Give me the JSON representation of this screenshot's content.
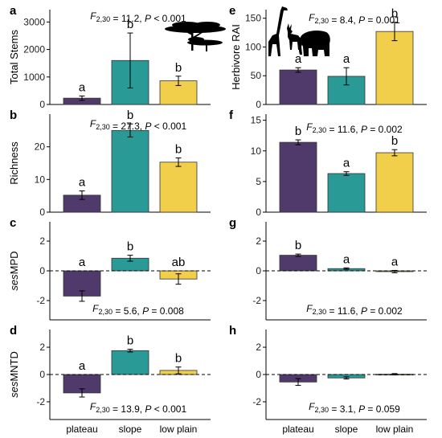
{
  "colors": {
    "plateau": "#4f3a6b",
    "slope": "#2a9a96",
    "low_plain": "#f2cf4a",
    "axis": "#000000"
  },
  "x_categories": [
    "plateau",
    "slope",
    "low plain"
  ],
  "icons": [
    "acacia-tree-icon",
    "giraffe-icon",
    "antelope-icon",
    "elephant-icon"
  ],
  "chart_data": [
    {
      "panel": "a",
      "type": "bar",
      "ylabel": "Total Stems",
      "ylabel_italic_prefix": "",
      "categories": [
        "plateau",
        "slope",
        "low plain"
      ],
      "values": [
        230,
        1600,
        860
      ],
      "err": [
        80,
        1000,
        170
      ],
      "letters": [
        "a",
        "b",
        "b"
      ],
      "stat_F": "2,30",
      "stat_value": "= 11.2,",
      "stat_p": "< 0.001",
      "ylim": [
        0,
        3450
      ],
      "ticks": [
        0,
        1000,
        2000,
        3000
      ],
      "dashed_zero": false
    },
    {
      "panel": "b",
      "type": "bar",
      "ylabel": "Richness",
      "ylabel_italic_prefix": "",
      "categories": [
        "plateau",
        "slope",
        "low plain"
      ],
      "values": [
        5.2,
        25,
        15.3
      ],
      "err": [
        1.3,
        2.0,
        1.3
      ],
      "letters": [
        "a",
        "b",
        "b"
      ],
      "stat_F": "2,30",
      "stat_value": "= 27.3,",
      "stat_p": "< 0.001",
      "ylim": [
        0,
        30
      ],
      "ticks": [
        0,
        10,
        20
      ],
      "dashed_zero": false
    },
    {
      "panel": "c",
      "type": "bar",
      "ylabel": "MPD",
      "ylabel_italic_prefix": "ses",
      "categories": [
        "plateau",
        "slope",
        "low plain"
      ],
      "values": [
        -1.7,
        0.85,
        -0.55
      ],
      "err": [
        0.35,
        0.2,
        0.35
      ],
      "letters": [
        "a",
        "b",
        "ab"
      ],
      "stat_F": "2,30",
      "stat_value": "= 5.6,",
      "stat_p": "= 0.008",
      "ylim": [
        -3.3,
        3.3
      ],
      "ticks": [
        -2,
        0,
        2
      ],
      "dashed_zero": true
    },
    {
      "panel": "d",
      "type": "bar",
      "ylabel": "MNTD",
      "ylabel_italic_prefix": "ses",
      "categories": [
        "plateau",
        "slope",
        "low plain"
      ],
      "values": [
        -1.35,
        1.75,
        0.3
      ],
      "err": [
        0.3,
        0.1,
        0.25
      ],
      "letters": [
        "a",
        "b",
        "b"
      ],
      "stat_F": "2,30",
      "stat_value": "= 13.9,",
      "stat_p": "< 0.001",
      "ylim": [
        -3.3,
        3.3
      ],
      "ticks": [
        -2,
        0,
        2
      ],
      "dashed_zero": true
    },
    {
      "panel": "e",
      "type": "bar",
      "ylabel": "Herbivore RAI",
      "ylabel_italic_prefix": "",
      "categories": [
        "plateau",
        "slope",
        "low plain"
      ],
      "values": [
        60,
        49,
        127
      ],
      "err": [
        4,
        15,
        16
      ],
      "letters": [
        "a",
        "a",
        "b"
      ],
      "stat_F": "2,30",
      "stat_value": "= 8.4,",
      "stat_p": "= 0.001",
      "ylim": [
        0,
        165
      ],
      "ticks": [
        0,
        50,
        100,
        150
      ],
      "dashed_zero": false
    },
    {
      "panel": "f",
      "type": "bar",
      "ylabel": "",
      "ylabel_italic_prefix": "",
      "categories": [
        "plateau",
        "slope",
        "low plain"
      ],
      "values": [
        11.4,
        6.3,
        9.7
      ],
      "err": [
        0.4,
        0.3,
        0.5
      ],
      "letters": [
        "b",
        "a",
        "b"
      ],
      "stat_F": "2,30",
      "stat_value": "= 11.6,",
      "stat_p": "= 0.002",
      "ylim": [
        0,
        16
      ],
      "ticks": [
        0,
        5,
        10,
        15
      ],
      "dashed_zero": false
    },
    {
      "panel": "g",
      "type": "bar",
      "ylabel": "",
      "ylabel_italic_prefix": "",
      "categories": [
        "plateau",
        "slope",
        "low plain"
      ],
      "values": [
        1.05,
        0.15,
        -0.05
      ],
      "err": [
        0.08,
        0.05,
        0.08
      ],
      "letters": [
        "b",
        "a",
        "a"
      ],
      "stat_F": "2,30",
      "stat_value": "= 11.6,",
      "stat_p": "= 0.002",
      "ylim": [
        -3.3,
        3.3
      ],
      "ticks": [
        -2,
        0,
        2
      ],
      "dashed_zero": true
    },
    {
      "panel": "h",
      "type": "bar",
      "ylabel": "",
      "ylabel_italic_prefix": "",
      "categories": [
        "plateau",
        "slope",
        "low plain"
      ],
      "values": [
        -0.55,
        -0.25,
        0.02
      ],
      "err": [
        0.25,
        0.08,
        0.05
      ],
      "letters": [
        "",
        "",
        ""
      ],
      "stat_F": "2,30",
      "stat_value": "= 3.1,",
      "stat_p": "= 0.059",
      "ylim": [
        -3.3,
        3.3
      ],
      "ticks": [
        -2,
        0,
        2
      ],
      "dashed_zero": true
    }
  ]
}
